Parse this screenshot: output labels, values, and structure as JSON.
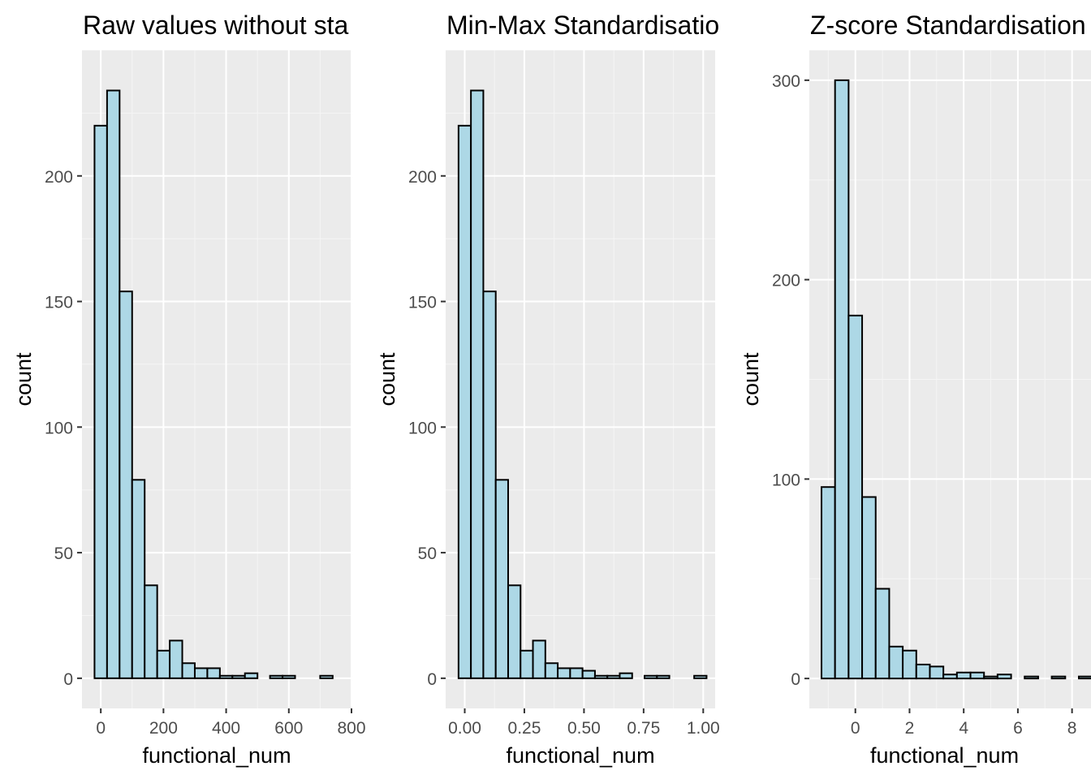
{
  "colors": {
    "panel_bg": "#ebebeb",
    "bar_fill": "#add8e6",
    "bar_stroke": "#000000",
    "grid": "#ffffff",
    "tick_text": "#4d4d4d"
  },
  "chart_data": [
    {
      "type": "bar",
      "title": "Raw values without sta",
      "xlabel": "functional_num",
      "ylabel": "count",
      "xlim": [
        -60,
        800
      ],
      "ylim": [
        -12,
        250
      ],
      "xticks": [
        "0",
        "200",
        "400",
        "600",
        "800"
      ],
      "xtick_values": [
        0,
        200,
        400,
        600,
        800
      ],
      "yticks": [
        "0",
        "50",
        "100",
        "150",
        "200"
      ],
      "ytick_values": [
        0,
        50,
        100,
        150,
        200
      ],
      "bin_start": -20,
      "bin_width": 40,
      "values": [
        220,
        234,
        154,
        79,
        37,
        11,
        15,
        6,
        4,
        4,
        1,
        1,
        2,
        0,
        1,
        1,
        0,
        0,
        1
      ],
      "grid": true
    },
    {
      "type": "bar",
      "title": "Min-Max Standardisatio",
      "xlabel": "functional_num",
      "ylabel": "count",
      "xlim": [
        -0.08,
        1.05
      ],
      "ylim": [
        -12,
        250
      ],
      "xticks": [
        "0.00",
        "0.25",
        "0.50",
        "0.75",
        "1.00"
      ],
      "xtick_values": [
        0,
        0.25,
        0.5,
        0.75,
        1.0
      ],
      "yticks": [
        "0",
        "50",
        "100",
        "150",
        "200"
      ],
      "ytick_values": [
        0,
        50,
        100,
        150,
        200
      ],
      "bin_start": -0.026,
      "bin_width": 0.052,
      "values": [
        220,
        234,
        154,
        79,
        37,
        11,
        15,
        6,
        4,
        4,
        3,
        1,
        1,
        2,
        0,
        1,
        1,
        0,
        0,
        1
      ],
      "grid": true
    },
    {
      "type": "bar",
      "title": "Z-score Standardisation",
      "xlabel": "functional_num",
      "ylabel": "count",
      "xlim": [
        -1.7,
        8.7
      ],
      "ylim": [
        -15,
        315
      ],
      "xticks": [
        "0",
        "2",
        "4",
        "6",
        "8"
      ],
      "xtick_values": [
        0,
        2,
        4,
        6,
        8
      ],
      "yticks": [
        "0",
        "100",
        "200",
        "300"
      ],
      "ytick_values": [
        0,
        100,
        200,
        300
      ],
      "bin_start": -1.25,
      "bin_width": 0.5,
      "values": [
        96,
        300,
        182,
        91,
        45,
        16,
        14,
        7,
        6,
        2,
        3,
        3,
        1,
        2,
        0,
        1,
        0,
        1,
        0,
        1
      ],
      "grid": true
    }
  ]
}
